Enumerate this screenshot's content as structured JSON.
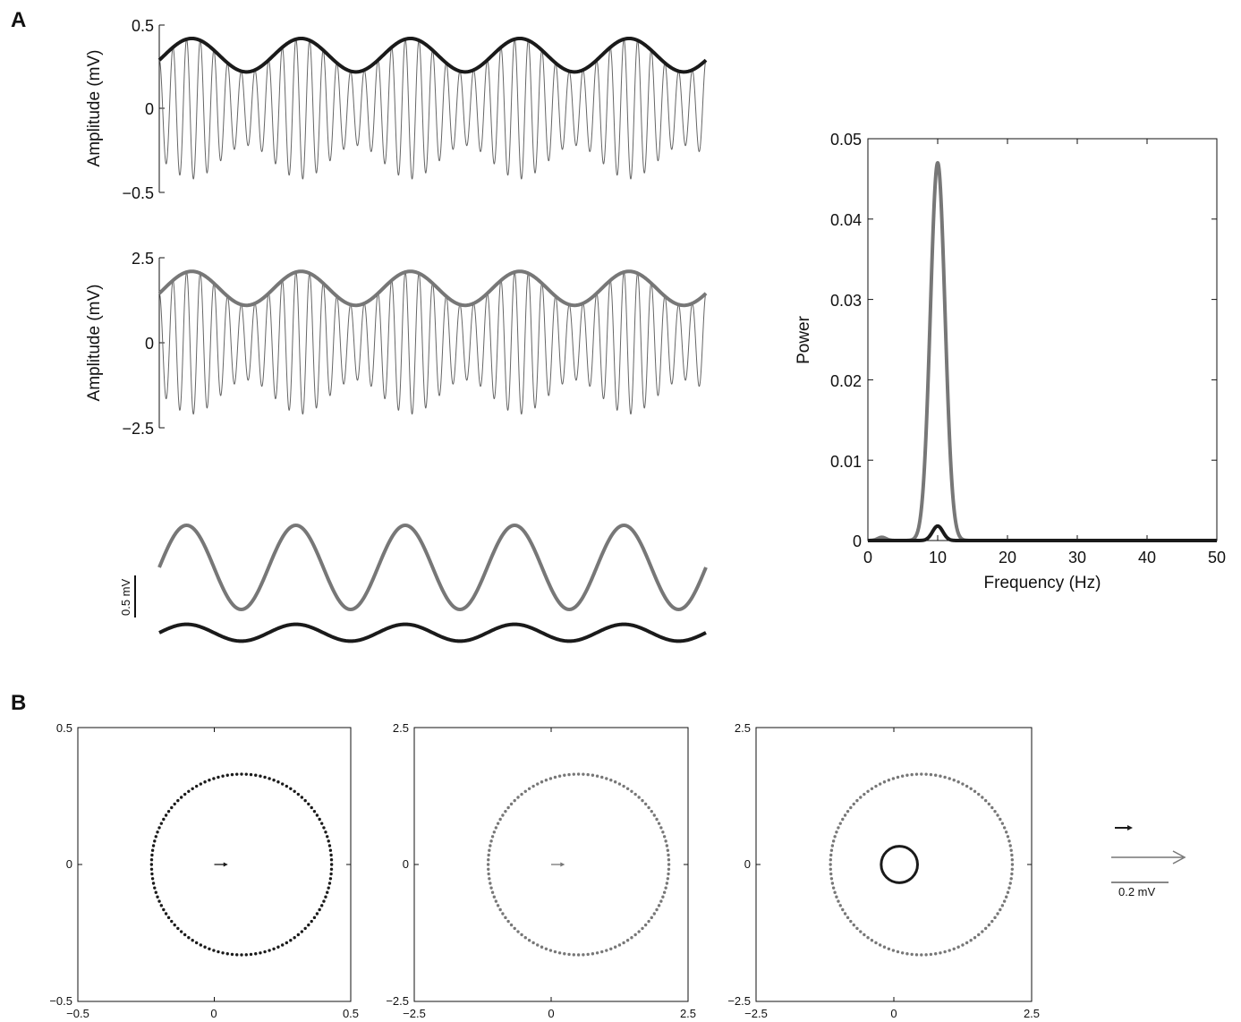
{
  "panels": {
    "a": "A",
    "b": "B"
  },
  "colors": {
    "black": "#1a1a1a",
    "gray": "#777777",
    "thin": "#666666"
  },
  "chart_data": [
    {
      "type": "line",
      "id": "a1",
      "ylabel": "Amplitude (mV)",
      "ylim": [
        -0.5,
        0.5
      ],
      "yticks": [
        "0.5",
        "0",
        "−0.5"
      ],
      "signal": {
        "carrier_cycles": 40,
        "envelope_cycles": 5,
        "carrier_amplitude": 0.1,
        "envelope_mean": 0.32,
        "envelope_amplitude": 0.1
      },
      "series": [
        {
          "color": "#666666",
          "width": 1
        },
        {
          "color": "#1a1a1a",
          "width": 4
        }
      ]
    },
    {
      "type": "line",
      "id": "a2",
      "ylabel": "Amplitude (mV)",
      "ylim": [
        -2.5,
        2.5
      ],
      "yticks": [
        "2.5",
        "0",
        "−2.5"
      ],
      "signal": {
        "carrier_cycles": 40,
        "envelope_cycles": 5,
        "carrier_amplitude": 0.5,
        "envelope_mean": 1.6,
        "envelope_amplitude": 0.5
      },
      "series": [
        {
          "color": "#666666",
          "width": 1
        },
        {
          "color": "#777777",
          "width": 4
        }
      ]
    },
    {
      "type": "line",
      "id": "a3",
      "scalebar": "0.5 mV",
      "series": [
        {
          "color": "#777777",
          "amplitude": 0.5,
          "cycles": 5
        },
        {
          "color": "#1a1a1a",
          "amplitude": 0.1,
          "cycles": 5
        }
      ]
    },
    {
      "type": "line",
      "id": "spectrum",
      "xlabel": "Frequency (Hz)",
      "ylabel": "Power",
      "xlim": [
        0,
        50
      ],
      "ylim": [
        0,
        0.05
      ],
      "xticks": [
        "0",
        "10",
        "20",
        "30",
        "40",
        "50"
      ],
      "yticks": [
        "0",
        "0.01",
        "0.02",
        "0.03",
        "0.04",
        "0.05"
      ],
      "series": [
        {
          "color": "#777777",
          "peak_hz": 10,
          "peak_power": 0.047
        },
        {
          "color": "#1a1a1a",
          "peak_hz": 10,
          "peak_power": 0.0018
        }
      ]
    },
    {
      "type": "scatter",
      "id": "b1",
      "xlim": [
        -0.5,
        0.5
      ],
      "ylim": [
        -0.5,
        0.5
      ],
      "xticks": [
        "−0.5",
        "0",
        "0.5"
      ],
      "yticks": [
        "0.5",
        "0",
        "−0.5"
      ],
      "circle": {
        "cx": 0.1,
        "cy": 0,
        "r": 0.33,
        "color": "#1a1a1a"
      },
      "arrow": {
        "x": 0,
        "y": 0,
        "dx": 0.05,
        "color": "#1a1a1a"
      }
    },
    {
      "type": "scatter",
      "id": "b2",
      "xlim": [
        -2.5,
        2.5
      ],
      "ylim": [
        -2.5,
        2.5
      ],
      "xticks": [
        "−2.5",
        "0",
        "2.5"
      ],
      "yticks": [
        "2.5",
        "0",
        "−2.5"
      ],
      "circle": {
        "cx": 0.5,
        "cy": 0,
        "r": 1.65,
        "color": "#777777"
      },
      "arrow": {
        "x": 0,
        "y": 0,
        "dx": 0.25,
        "color": "#777777"
      }
    },
    {
      "type": "scatter",
      "id": "b3",
      "xlim": [
        -2.5,
        2.5
      ],
      "ylim": [
        -2.5,
        2.5
      ],
      "xticks": [
        "−2.5",
        "0",
        "2.5"
      ],
      "yticks": [
        "2.5",
        "0",
        "−2.5"
      ],
      "circle": {
        "cx": 0.5,
        "cy": 0,
        "r": 1.65,
        "color": "#777777"
      },
      "small_circle": {
        "cx": 0.1,
        "cy": 0,
        "r": 0.33,
        "color": "#1a1a1a"
      }
    }
  ],
  "legend_b": {
    "scale": "0.2 mV"
  }
}
